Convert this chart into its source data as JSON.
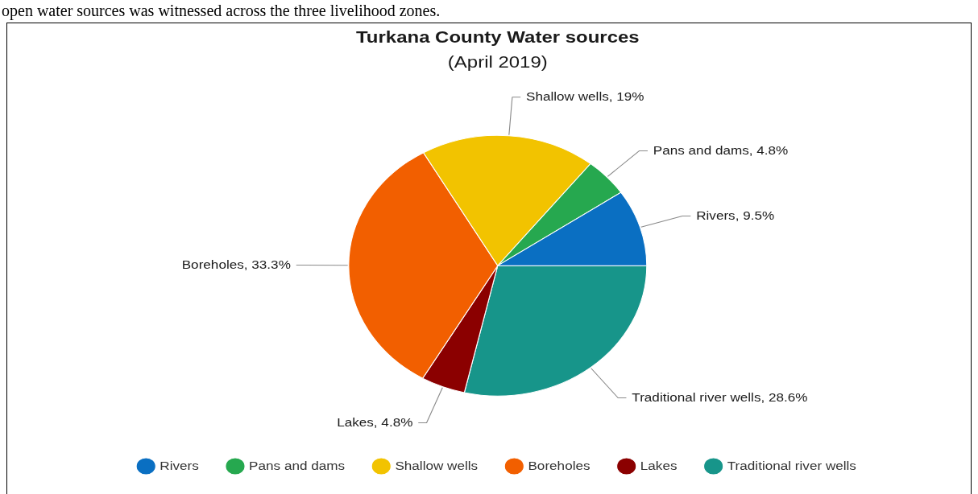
{
  "chart_data": {
    "type": "pie",
    "title": "Turkana County Water sources",
    "subtitle": "(April 2019)",
    "categories": [
      "Rivers",
      "Pans and dams",
      "Shallow wells",
      "Boreholes",
      "Lakes",
      "Traditional river wells"
    ],
    "values": [
      9.5,
      4.8,
      19,
      33.3,
      4.8,
      28.6
    ],
    "colors": [
      "#0a6fc2",
      "#26a84f",
      "#f2c300",
      "#f25f00",
      "#8b0000",
      "#17958a"
    ],
    "value_labels": [
      "Rivers, 9.5%",
      "Pans and dams, 4.8%",
      "Shallow wells, 19%",
      "Boreholes, 33.3%",
      "Lakes, 4.8%",
      "Traditional river wells, 28.6%"
    ],
    "legend": "bottom",
    "annotations": [
      "open water sources was witnessed across the three livelihood zones."
    ]
  }
}
